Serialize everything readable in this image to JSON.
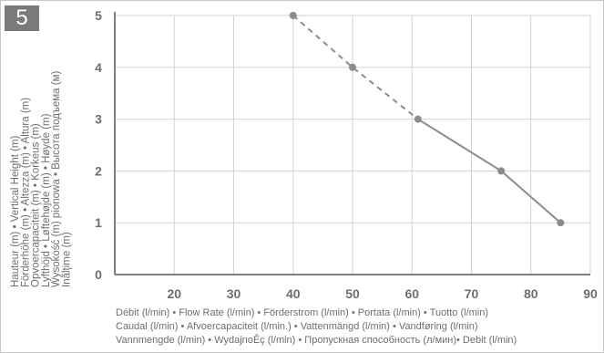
{
  "badge": "5",
  "chart_data": {
    "type": "line",
    "xlabel_lines": [
      "Débit (l/min) • Flow Rate (l/min) • Förderstrom (l/min) • Portata (l/min) • Tuotto (l/min)",
      "Caudal (l/min) • Afvoercapaciteit (l/min.) • Vattenmängd (l/min) • Vandføring (l/min)",
      "Vannmengde (l/min) • WydajnoÊç (l/min) • Пропускная способность (л/мин)• Debit (l/min)"
    ],
    "ylabel_lines": [
      "Hauteur (m) • Vertical Height (m)",
      "Förderhöhe (m) • Altezza (m) • Altura (m)",
      "Opvoercapaciteit (m) • Korkeus (m)",
      "Lyfthöjd • Løftehøjde (m) • Høyde (m)",
      "Wysokość (m) pionowa • Высота подъема (м)",
      "Inălțime (m)"
    ],
    "x_ticks": [
      20,
      30,
      40,
      50,
      60,
      70,
      80,
      90
    ],
    "y_ticks": [
      0,
      1,
      2,
      3,
      4,
      5
    ],
    "xlim": [
      10,
      90
    ],
    "ylim": [
      0,
      5
    ],
    "grid": true,
    "series": [
      {
        "style": "dashed",
        "x": [
          40,
          50,
          61
        ],
        "y": [
          5,
          4,
          3
        ]
      },
      {
        "style": "solid",
        "x": [
          61,
          75,
          85
        ],
        "y": [
          3,
          2,
          1
        ]
      }
    ],
    "points": {
      "x": [
        40,
        50,
        61,
        75,
        85
      ],
      "y": [
        5,
        4,
        3,
        2,
        1
      ]
    }
  }
}
